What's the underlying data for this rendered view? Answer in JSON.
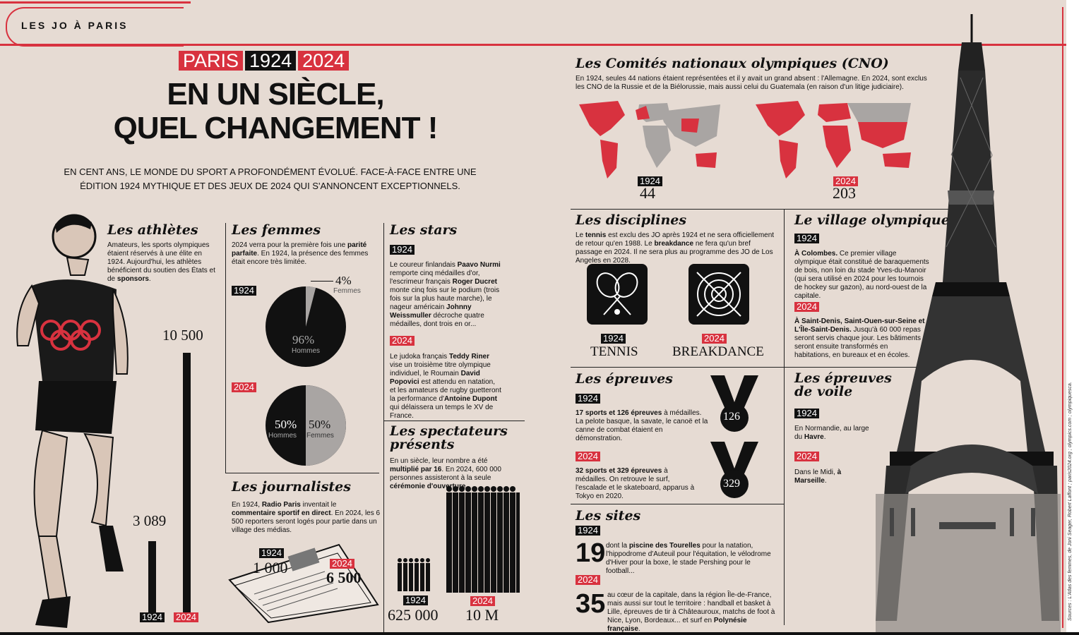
{
  "header": {
    "section_label": "LES JO À PARIS"
  },
  "banner": {
    "paris": "PARIS",
    "y1924": "1924",
    "y2024": "2024"
  },
  "title": {
    "line1": "EN UN SIÈCLE,",
    "line2": "QUEL CHANGEMENT !"
  },
  "intro": {
    "line1": "EN CENT ANS, LE MONDE DU SPORT A PROFONDÉMENT ÉVOLUÉ. FACE-À-FACE ENTRE UNE",
    "line2": "ÉDITION 1924 MYTHIQUE ET DES JEUX DE 2024 QUI S'ANNONCENT EXCEPTIONNELS."
  },
  "athletes": {
    "title": "Les athlètes",
    "text_plain": "Amateurs, les sports olympiques étaient réservés à une élite en 1924. Aujourd'hui, les athlètes bénéficient du soutien des États et de ",
    "text_bold": "sponsors",
    "text_end": ".",
    "value_1924": 3089,
    "value_2024": 10500,
    "label_1924": "3 089",
    "label_2024": "10 500",
    "year_1924": "1924",
    "year_2024": "2024"
  },
  "women": {
    "title": "Les femmes",
    "t1": "2024 verra pour la première fois une ",
    "b1": "parité parfaite",
    "t2": ". En 1924, la présence des femmes était encore très limitée.",
    "year_1924": "1924",
    "year_2024": "2024",
    "pct_1924_men": "96%",
    "pct_1924_women": "4%",
    "pct_2024_men": "50%",
    "pct_2024_women": "50%",
    "label_men": "Hommes",
    "label_women": "Femmes",
    "share_1924_women": 4,
    "share_2024_women": 50
  },
  "journalists": {
    "title": "Les journalistes",
    "t1": "En 1924, ",
    "b1": "Radio Paris",
    "t2": " inventait le ",
    "b2": "commentaire sportif en direct",
    "t3": ". En 2024, les 6 500 reporters seront logés pour partie dans un village des médias.",
    "year_1924": "1924",
    "value_1924": "1 000",
    "year_2024": "2024",
    "value_2024": "6 500"
  },
  "stars": {
    "title": "Les stars",
    "year_1924": "1924",
    "p1_t1": "Le coureur finlandais ",
    "p1_b1": "Paavo Nurmi",
    "p1_t2": " remporte cinq médailles d'or, l'escrimeur français ",
    "p1_b2": "Roger Ducret",
    "p1_t3": " monte cinq fois sur le podium (trois fois sur la plus haute marche), le nageur américain ",
    "p1_b3": "Johnny Weissmuller",
    "p1_t4": " décroche quatre médailles, dont trois en or...",
    "year_2024": "2024",
    "p2_t1": "Le judoka français ",
    "p2_b1": "Teddy Riner",
    "p2_t2": " vise un troisième titre olympique individuel, le Roumain ",
    "p2_b2": "David Popovici",
    "p2_t3": " est attendu en natation, et les amateurs de rugby guetteront la performance d'",
    "p2_b3": "Antoine Dupont",
    "p2_t4": " qui délaissera un temps le XV de France."
  },
  "spectators": {
    "title1": "Les spectateurs",
    "title2": "présents",
    "t1": "En un siècle, leur nombre a été ",
    "b1": "multiplié par 16",
    "t2": ". En 2024, 600 000 personnes assisteront à la seule ",
    "b2": "cérémonie d'ouverture",
    "t3": ".",
    "year_1924": "1924",
    "value_1924": "625 000",
    "year_2024": "2024",
    "value_2024": "10 M"
  },
  "cno": {
    "title": "Les Comités nationaux olympiques (CNO)",
    "text": "En 1924, seules 44 nations étaient représentées et il y avait un grand absent : l'Allemagne. En 2024, sont exclus les CNO de la Russie et de la Biélorussie, mais aussi celui du Guatemala (en raison d'un litige judiciaire).",
    "year_1924": "1924",
    "value_1924": "44",
    "year_2024": "2024",
    "value_2024": "203"
  },
  "disciplines": {
    "title": "Les disciplines",
    "t1": "Le ",
    "b1": "tennis",
    "t2": " est exclu des JO après 1924 et ne sera officiellement de retour qu'en 1988. Le ",
    "b2": "breakdance",
    "t3": " ne fera qu'un bref passage en 2024. Il ne sera plus au programme des JO de Los Angeles en 2028.",
    "year_1924": "1924",
    "label_1924": "TENNIS",
    "year_2024": "2024",
    "label_2024": "BREAKDANCE"
  },
  "village": {
    "title": "Le village olympique",
    "year_1924": "1924",
    "p1_b": "À Colombes.",
    "p1_t": " Ce premier village olympique était constitué de baraquements de bois, non loin du stade Yves-du-Manoir (qui sera utilisé en 2024 pour les tournois de hockey sur gazon), au nord-ouest de la capitale.",
    "year_2024": "2024",
    "p2_b": "À Saint-Denis, Saint-Ouen-sur-Seine et L'Île-Saint-Denis.",
    "p2_t": " Jusqu'à 60 000 repas seront servis chaque jour. Les bâtiments seront ensuite transformés en habitations, en bureaux et en écoles."
  },
  "events": {
    "title": "Les épreuves",
    "year_1924": "1924",
    "p1_b": "17 sports et 126 épreuves",
    "p1_t": " à médailles. La pelote basque, la savate, le canoë et la canne de combat étaient en démonstration.",
    "year_2024": "2024",
    "p2_b": "32 sports et 329 épreuves",
    "p2_t": " à médailles. On retrouve le surf, l'escalade et le skateboard, apparus à Tokyo en 2020.",
    "medal_1924": "126",
    "medal_2024": "329"
  },
  "sailing": {
    "title1": "Les épreuves",
    "title2": "de voile",
    "year_1924": "1924",
    "p1_t": "En Normandie, au large du ",
    "p1_b": "Havre",
    "p1_e": ".",
    "year_2024": "2024",
    "p2_t": "Dans le Midi, ",
    "p2_b": "à Marseille",
    "p2_e": "."
  },
  "sites": {
    "title": "Les sites",
    "year_1924": "1924",
    "num_1924": "19",
    "p1_t1": "dont la ",
    "p1_b1": "piscine des Tourelles",
    "p1_t2": " pour la natation, l'hippodrome d'Auteuil pour l'équitation, le vélodrome d'Hiver pour la boxe, le stade Pershing pour le football...",
    "year_2024": "2024",
    "num_2024": "35",
    "p2_t1": "au cœur de la capitale, dans la région Île-de-France, mais aussi sur tout le territoire : handball et basket à Lille, épreuves de tir à Châteauroux, matchs de foot à Nice, Lyon, Bordeaux... et surf en ",
    "p2_b1": "Polynésie française",
    "p2_t2": "."
  },
  "sources": "Sources : L'Atlas des femmes, de Joni Seager, Robert Laffont ; paris2024.org ; olympics.com ; olympiquesca.",
  "colors": {
    "red": "#d8323f",
    "black": "#111111",
    "paper": "#e6dbd3",
    "grey": "#a9a5a3"
  }
}
